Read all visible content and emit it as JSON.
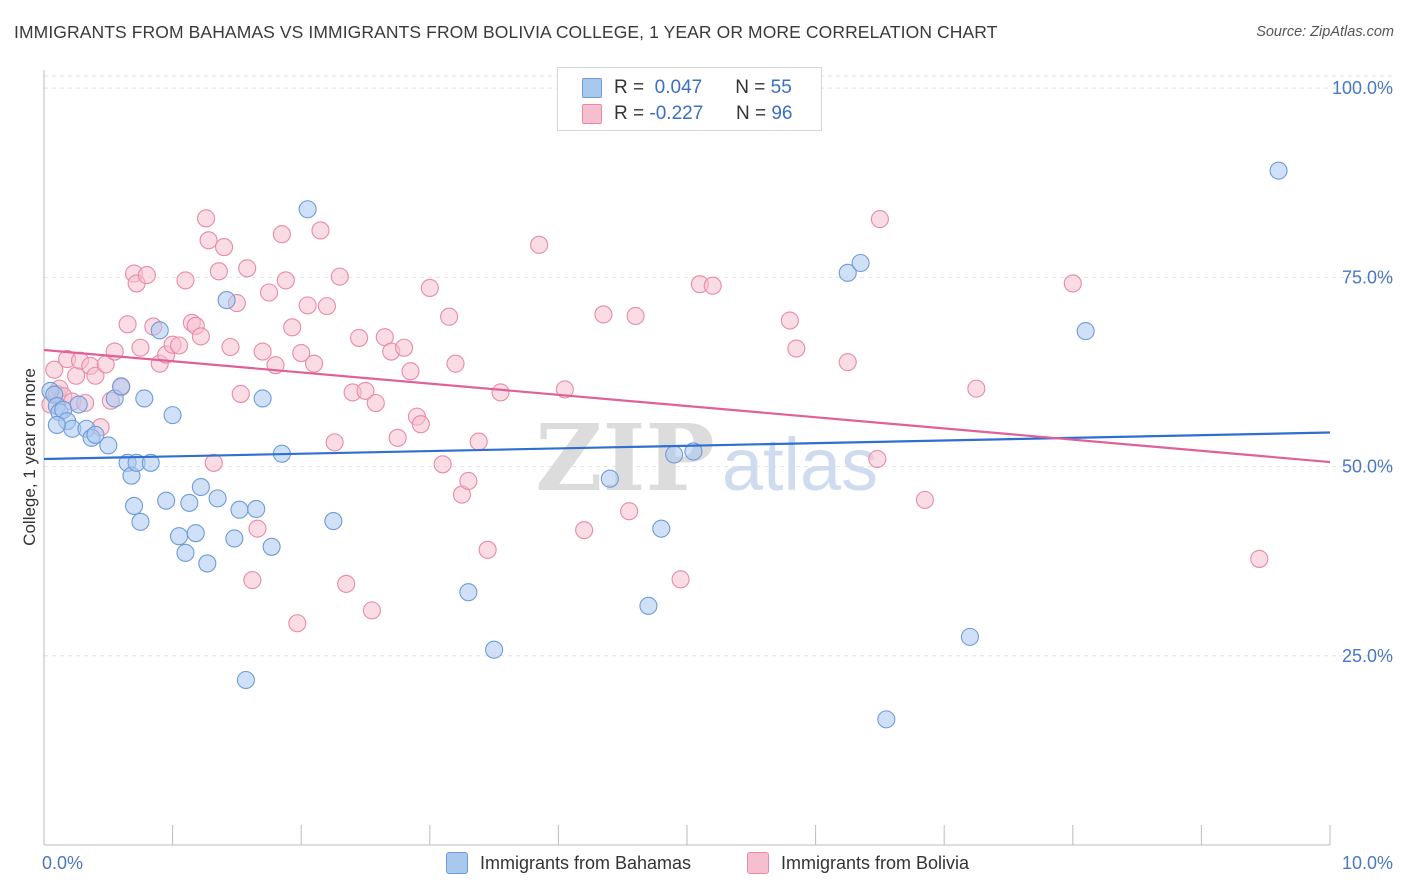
{
  "title": "IMMIGRANTS FROM BAHAMAS VS IMMIGRANTS FROM BOLIVIA COLLEGE, 1 YEAR OR MORE CORRELATION CHART",
  "source": "Source: ZipAtlas.com",
  "watermark": {
    "zip": "ZIP",
    "atlas": "atlas"
  },
  "legend": {
    "rows": [
      {
        "r_label": "R =",
        "r_value": "0.047",
        "n_label": "N =",
        "n_value": "55"
      },
      {
        "r_label": "R =",
        "r_value": "-0.227",
        "n_label": "N =",
        "n_value": "96"
      }
    ]
  },
  "colors": {
    "bahamas_fill": "#a9c8f0",
    "bahamas_stroke": "#6f9bd8",
    "bahamas_line": "#2f6fcf",
    "bolivia_fill": "#f6bfd0",
    "bolivia_stroke": "#e98aa8",
    "bolivia_line": "#e0609a",
    "tick_text": "#4a78c2",
    "grid": "#e2e2e2"
  },
  "chart_data": {
    "type": "scatter",
    "title": "IMMIGRANTS FROM BAHAMAS VS IMMIGRANTS FROM BOLIVIA COLLEGE, 1 YEAR OR MORE CORRELATION CHART",
    "xlabel": "",
    "ylabel": "College, 1 year or more",
    "xlim": [
      0,
      10
    ],
    "ylim": [
      0,
      102.4
    ],
    "x_tick_labels": [
      "0.0%",
      "10.0%"
    ],
    "y_tick_labels": [
      {
        "value": 25,
        "label": "25.0%"
      },
      {
        "value": 50,
        "label": "50.0%"
      },
      {
        "value": 75,
        "label": "75.0%"
      },
      {
        "value": 100,
        "label": "100.0%"
      }
    ],
    "grid": true,
    "series": [
      {
        "name": "Immigrants from Bahamas",
        "r": 0.047,
        "n": 55,
        "trend": {
          "x": [
            0,
            10
          ],
          "y": [
            51.0,
            54.5
          ]
        },
        "points": [
          [
            0.05,
            60
          ],
          [
            0.08,
            59.5
          ],
          [
            0.1,
            58
          ],
          [
            0.12,
            57.2
          ],
          [
            0.15,
            57.5
          ],
          [
            0.18,
            56
          ],
          [
            0.22,
            55
          ],
          [
            0.27,
            58.2
          ],
          [
            0.33,
            55
          ],
          [
            0.37,
            53.8
          ],
          [
            0.4,
            54.2
          ],
          [
            0.5,
            52.8
          ],
          [
            0.55,
            59
          ],
          [
            0.6,
            60.6
          ],
          [
            0.65,
            50.5
          ],
          [
            0.68,
            48.8
          ],
          [
            0.7,
            44.8
          ],
          [
            0.72,
            50.5
          ],
          [
            0.75,
            42.7
          ],
          [
            0.78,
            59
          ],
          [
            0.83,
            50.5
          ],
          [
            0.9,
            68
          ],
          [
            0.95,
            45.5
          ],
          [
            1.0,
            56.8
          ],
          [
            1.05,
            40.8
          ],
          [
            1.1,
            38.6
          ],
          [
            1.13,
            45.2
          ],
          [
            1.18,
            41.2
          ],
          [
            1.22,
            47.3
          ],
          [
            1.27,
            37.2
          ],
          [
            1.35,
            45.8
          ],
          [
            1.42,
            72
          ],
          [
            1.48,
            40.5
          ],
          [
            1.52,
            44.3
          ],
          [
            1.57,
            21.8
          ],
          [
            1.65,
            44.4
          ],
          [
            1.7,
            59
          ],
          [
            1.77,
            39.4
          ],
          [
            1.85,
            51.7
          ],
          [
            2.05,
            84
          ],
          [
            2.25,
            42.8
          ],
          [
            3.3,
            33.4
          ],
          [
            3.5,
            25.8
          ],
          [
            4.4,
            48.4
          ],
          [
            4.7,
            31.6
          ],
          [
            4.8,
            41.8
          ],
          [
            4.9,
            51.6
          ],
          [
            5.05,
            52
          ],
          [
            6.25,
            75.6
          ],
          [
            6.35,
            76.9
          ],
          [
            6.55,
            16.6
          ],
          [
            7.2,
            27.5
          ],
          [
            8.1,
            67.9
          ],
          [
            9.6,
            89.1
          ],
          [
            0.1,
            55.5
          ]
        ]
      },
      {
        "name": "Immigrants from Bolivia",
        "r": -0.227,
        "n": 96,
        "trend": {
          "x": [
            0,
            10
          ],
          "y": [
            65.4,
            50.6
          ]
        },
        "points": [
          [
            0.05,
            58.2
          ],
          [
            0.08,
            62.8
          ],
          [
            0.1,
            59.6
          ],
          [
            0.12,
            60.3
          ],
          [
            0.15,
            59.3
          ],
          [
            0.18,
            64.2
          ],
          [
            0.22,
            58.6
          ],
          [
            0.25,
            62
          ],
          [
            0.28,
            64
          ],
          [
            0.32,
            58.4
          ],
          [
            0.36,
            63.3
          ],
          [
            0.4,
            62
          ],
          [
            0.44,
            55.2
          ],
          [
            0.48,
            63.5
          ],
          [
            0.52,
            58.7
          ],
          [
            0.55,
            65.2
          ],
          [
            0.6,
            60.5
          ],
          [
            0.65,
            68.8
          ],
          [
            0.7,
            75.5
          ],
          [
            0.72,
            74.2
          ],
          [
            0.75,
            65.7
          ],
          [
            0.8,
            75.3
          ],
          [
            0.85,
            68.5
          ],
          [
            0.9,
            63.6
          ],
          [
            0.95,
            64.8
          ],
          [
            1.0,
            66.1
          ],
          [
            1.05,
            66
          ],
          [
            1.1,
            74.6
          ],
          [
            1.15,
            69
          ],
          [
            1.18,
            68.6
          ],
          [
            1.22,
            67.2
          ],
          [
            1.26,
            82.8
          ],
          [
            1.28,
            79.9
          ],
          [
            1.32,
            50.5
          ],
          [
            1.36,
            75.8
          ],
          [
            1.4,
            79
          ],
          [
            1.45,
            65.8
          ],
          [
            1.5,
            71.6
          ],
          [
            1.53,
            59.6
          ],
          [
            1.58,
            76.2
          ],
          [
            1.62,
            35
          ],
          [
            1.66,
            41.8
          ],
          [
            1.7,
            65.2
          ],
          [
            1.75,
            73
          ],
          [
            1.8,
            63.4
          ],
          [
            1.85,
            80.7
          ],
          [
            1.88,
            74.6
          ],
          [
            1.93,
            68.4
          ],
          [
            1.97,
            29.3
          ],
          [
            2.0,
            65
          ],
          [
            2.05,
            71.3
          ],
          [
            2.1,
            63.6
          ],
          [
            2.15,
            81.2
          ],
          [
            2.2,
            71.2
          ],
          [
            2.26,
            53.2
          ],
          [
            2.3,
            75.1
          ],
          [
            2.35,
            34.5
          ],
          [
            2.4,
            59.8
          ],
          [
            2.45,
            67
          ],
          [
            2.5,
            60
          ],
          [
            2.55,
            31
          ],
          [
            2.58,
            58.4
          ],
          [
            2.65,
            67.1
          ],
          [
            2.7,
            65.2
          ],
          [
            2.75,
            53.8
          ],
          [
            2.8,
            65.7
          ],
          [
            2.85,
            62.6
          ],
          [
            2.9,
            56.6
          ],
          [
            2.93,
            55.6
          ],
          [
            3.0,
            73.6
          ],
          [
            3.1,
            50.3
          ],
          [
            3.15,
            69.8
          ],
          [
            3.2,
            63.6
          ],
          [
            3.25,
            46.3
          ],
          [
            3.3,
            48.1
          ],
          [
            3.38,
            53.3
          ],
          [
            3.45,
            39
          ],
          [
            3.55,
            59.8
          ],
          [
            3.85,
            79.3
          ],
          [
            4.05,
            60.2
          ],
          [
            4.2,
            41.6
          ],
          [
            4.35,
            70.1
          ],
          [
            4.55,
            44.1
          ],
          [
            4.6,
            69.9
          ],
          [
            4.95,
            35.1
          ],
          [
            5.1,
            74.1
          ],
          [
            5.2,
            73.9
          ],
          [
            5.8,
            69.3
          ],
          [
            5.85,
            65.6
          ],
          [
            6.25,
            63.8
          ],
          [
            6.48,
            51
          ],
          [
            6.5,
            82.7
          ],
          [
            6.85,
            45.6
          ],
          [
            7.25,
            60.3
          ],
          [
            9.45,
            37.8
          ],
          [
            8.0,
            74.2
          ]
        ]
      }
    ]
  },
  "bottom_legend": [
    "Immigrants from Bahamas",
    "Immigrants from Bolivia"
  ]
}
